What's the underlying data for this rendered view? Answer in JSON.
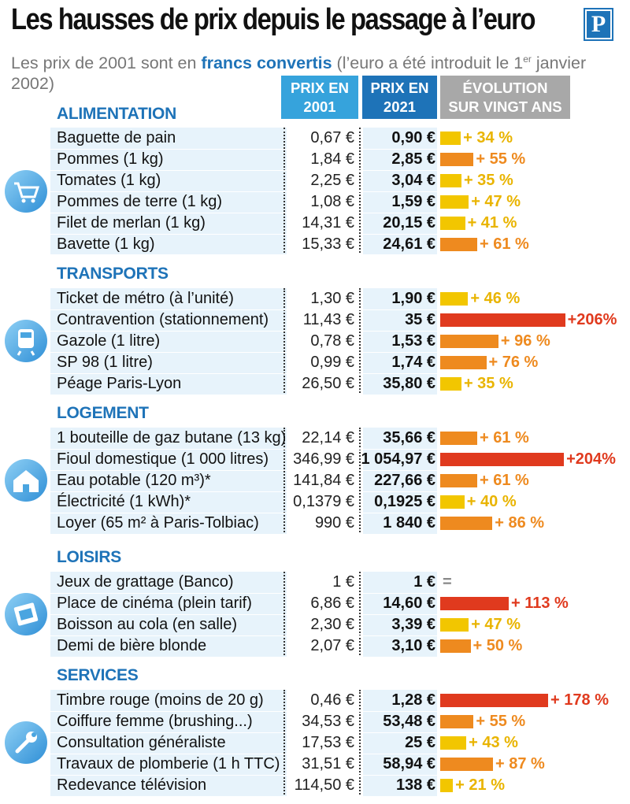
{
  "title": "Les hausses de prix depuis le passage à l’euro",
  "logo": "P",
  "subtitle": {
    "part1": "Les prix de 2001 sont en ",
    "bold": "francs convertis",
    "part2": " (l’euro a été introduit le 1",
    "sup": "er",
    "part3": " janvier 2002)"
  },
  "headers": {
    "col1": [
      "PRIX EN",
      "2001"
    ],
    "col2": [
      "PRIX EN",
      "2021"
    ],
    "col3": [
      "ÉVOLUTION",
      "SUR VINGT ANS"
    ]
  },
  "colors": {
    "low": "#f2c600",
    "mid": "#ee8a1f",
    "high": "#e03a1e",
    "accent": "#1e73b8"
  },
  "chart_data": {
    "type": "table",
    "sections": [
      {
        "category": "ALIMENTATION",
        "icon": "shopping-cart-icon",
        "rows": [
          {
            "label": "Baguette de pain",
            "price_2001": "0,67 €",
            "price_2021": "0,90 €",
            "evolution": "+ 34 %",
            "pct": 34
          },
          {
            "label": "Pommes (1 kg)",
            "price_2001": "1,84 €",
            "price_2021": "2,85 €",
            "evolution": "+ 55 %",
            "pct": 55
          },
          {
            "label": "Tomates (1 kg)",
            "price_2001": "2,25 €",
            "price_2021": "3,04 €",
            "evolution": "+ 35 %",
            "pct": 35
          },
          {
            "label": "Pommes de terre (1 kg)",
            "price_2001": "1,08 €",
            "price_2021": "1,59 €",
            "evolution": "+ 47 %",
            "pct": 47
          },
          {
            "label": "Filet de merlan (1 kg)",
            "price_2001": "14,31 €",
            "price_2021": "20,15 €",
            "evolution": "+ 41 %",
            "pct": 41
          },
          {
            "label": "Bavette (1 kg)",
            "price_2001": "15,33 €",
            "price_2021": "24,61 €",
            "evolution": "+ 61 %",
            "pct": 61
          }
        ]
      },
      {
        "category": "TRANSPORTS",
        "icon": "train-icon",
        "rows": [
          {
            "label": "Ticket de métro (à l’unité)",
            "price_2001": "1,30 €",
            "price_2021": "1,90 €",
            "evolution": "+ 46 %",
            "pct": 46
          },
          {
            "label": "Contravention (stationnement)",
            "price_2001": "11,43 €",
            "price_2021": "35 €",
            "evolution": "+206%",
            "pct": 206
          },
          {
            "label": "Gazole (1 litre)",
            "price_2001": "0,78 €",
            "price_2021": "1,53 €",
            "evolution": "+ 96 %",
            "pct": 96
          },
          {
            "label": "SP 98 (1 litre)",
            "price_2001": "0,99 €",
            "price_2021": "1,74 €",
            "evolution": "+ 76 %",
            "pct": 76
          },
          {
            "label": "Péage Paris-Lyon",
            "price_2001": "26,50 €",
            "price_2021": "35,80 €",
            "evolution": "+ 35 %",
            "pct": 35
          }
        ]
      },
      {
        "category": "LOGEMENT",
        "icon": "house-icon",
        "rows": [
          {
            "label": "1 bouteille de gaz butane (13 kg)",
            "price_2001": "22,14 €",
            "price_2021": "35,66 €",
            "evolution": "+ 61 %",
            "pct": 61
          },
          {
            "label": "Fioul domestique (1 000 litres)",
            "price_2001": "346,99 €",
            "price_2021": "1 054,97 €",
            "evolution": "+204%",
            "pct": 204
          },
          {
            "label": "Eau potable (120 m³)*",
            "price_2001": "141,84 €",
            "price_2021": "227,66 €",
            "evolution": "+ 61 %",
            "pct": 61
          },
          {
            "label": "Électricité (1 kWh)*",
            "price_2001": "0,1379 €",
            "price_2021": "0,1925 €",
            "evolution": "+ 40 %",
            "pct": 40
          },
          {
            "label": "Loyer (65 m² à Paris-Tolbiac)",
            "price_2001": "990 €",
            "price_2021": "1 840 €",
            "evolution": "+ 86 %",
            "pct": 86
          }
        ]
      },
      {
        "category": "LOISIRS",
        "icon": "film-icon",
        "rows": [
          {
            "label": "Jeux de grattage (Banco)",
            "price_2001": "1 €",
            "price_2021": "1 €",
            "evolution": "=",
            "pct": 0
          },
          {
            "label": "Place de cinéma (plein tarif)",
            "price_2001": "6,86 €",
            "price_2021": "14,60 €",
            "evolution": "+ 113 %",
            "pct": 113
          },
          {
            "label": "Boisson au cola (en salle)",
            "price_2001": "2,30 €",
            "price_2021": "3,39 €",
            "evolution": "+ 47 %",
            "pct": 47
          },
          {
            "label": "Demi de bière blonde",
            "price_2001": "2,07 €",
            "price_2021": "3,10 €",
            "evolution": "+ 50 %",
            "pct": 50
          }
        ]
      },
      {
        "category": "SERVICES",
        "icon": "wrench-icon",
        "rows": [
          {
            "label": "Timbre rouge (moins de 20 g)",
            "price_2001": "0,46 €",
            "price_2021": "1,28 €",
            "evolution": "+ 178 %",
            "pct": 178
          },
          {
            "label": "Coiffure femme (brushing...)",
            "price_2001": "34,53 €",
            "price_2021": "53,48 €",
            "evolution": "+ 55 %",
            "pct": 55
          },
          {
            "label": "Consultation généraliste",
            "price_2001": "17,53 €",
            "price_2021": "25 €",
            "evolution": "+ 43 %",
            "pct": 43
          },
          {
            "label": "Travaux de plomberie (1 h TTC)",
            "price_2001": "31,51 €",
            "price_2021": "58,94 €",
            "evolution": "+ 87 %",
            "pct": 87
          },
          {
            "label": "Redevance télévision",
            "price_2001": "114,50 €",
            "price_2021": "138 €",
            "evolution": "+ 21 %",
            "pct": 21
          }
        ]
      }
    ]
  }
}
